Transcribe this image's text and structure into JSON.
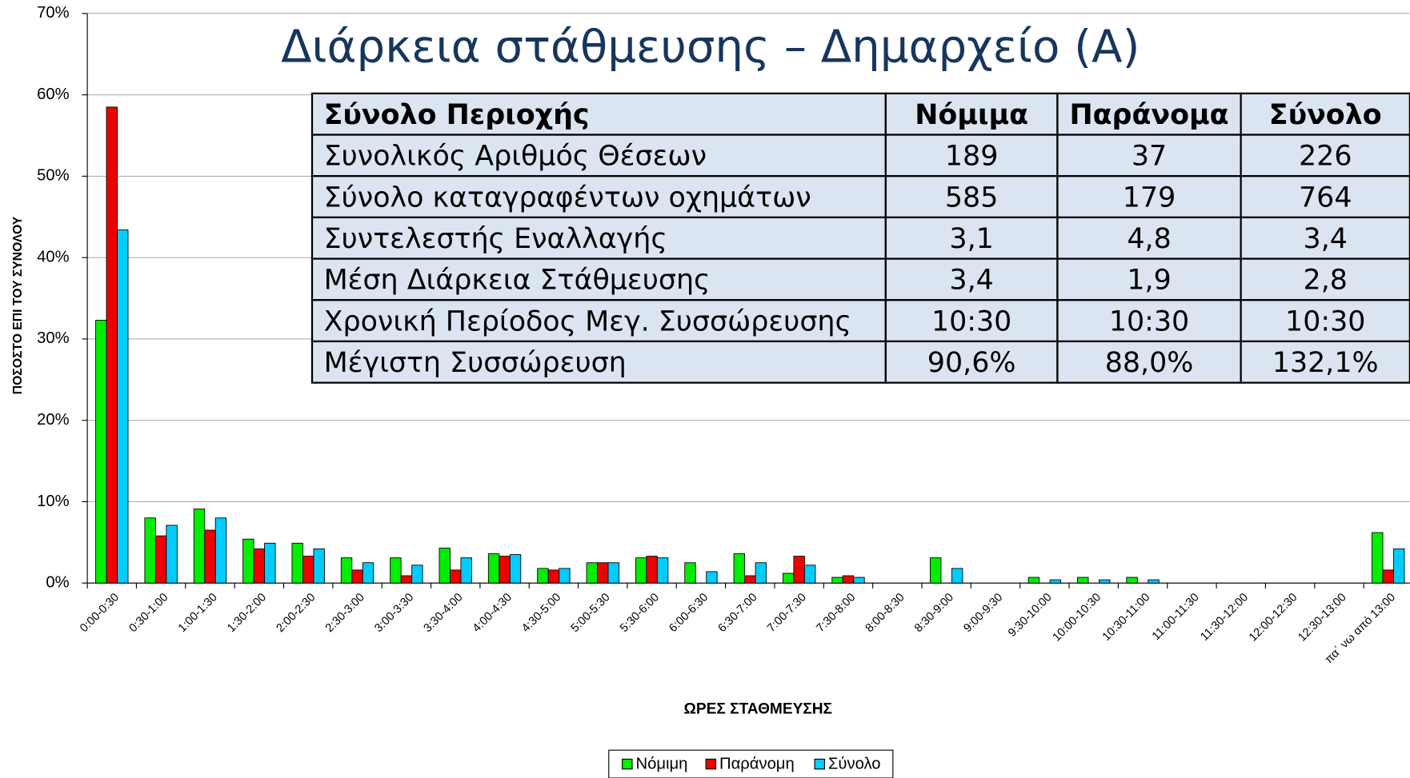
{
  "chart_data": {
    "type": "bar",
    "title": "Διάρκεια στάθμευσης – Δημαρχείο (Α)",
    "x_label": "ΩΡΕΣ ΣΤΑΘΜΕΥΣΗΣ",
    "y_label": "ΠΟΣΟΣΤΟ ΕΠΙ ΤΟΥ ΣΥΝΟΛΟΥ",
    "categories": [
      "0:00-0:30",
      "0:30-1:00",
      "1:00-1:30",
      "1:30-2:00",
      "2:00-2:30",
      "2:30-3:00",
      "3:00-3:30",
      "3:30-4:00",
      "4:00-4:30",
      "4:30-5:00",
      "5:00-5:30",
      "5:30-6:00",
      "6:00-6:30",
      "6:30-7:00",
      "7:00-7:30",
      "7:30-8:00",
      "8:00-8:30",
      "8:30-9:00",
      "9:00-9:30",
      "9:30-10:00",
      "10:00-10:30",
      "10:30-11:00",
      "11:00-11:30",
      "11:30-12:00",
      "12:00-12:30",
      "12:30-13:00",
      "πα΄ νω από 13:00"
    ],
    "series": [
      {
        "name": "Νόμιμη",
        "color": "#00ee00",
        "values": [
          32.3,
          8.0,
          9.1,
          5.4,
          4.9,
          3.1,
          3.1,
          4.3,
          3.6,
          1.8,
          2.5,
          3.1,
          2.5,
          3.6,
          1.2,
          0.7,
          0,
          3.1,
          0,
          0.7,
          0.7,
          0.7,
          0,
          0,
          0,
          0,
          6.2
        ]
      },
      {
        "name": "Παράνομη",
        "color": "#ee0000",
        "values": [
          58.5,
          5.8,
          6.5,
          4.2,
          3.3,
          1.6,
          0.9,
          1.6,
          3.3,
          1.6,
          2.5,
          3.3,
          0,
          0.9,
          3.3,
          0.9,
          0,
          0,
          0,
          0,
          0,
          0,
          0,
          0,
          0,
          0,
          1.6
        ]
      },
      {
        "name": "Σύνολο",
        "color": "#00ccff",
        "values": [
          43.4,
          7.1,
          8.0,
          4.9,
          4.2,
          2.5,
          2.2,
          3.1,
          3.5,
          1.8,
          2.5,
          3.1,
          1.4,
          2.5,
          2.2,
          0.7,
          0,
          1.8,
          0,
          0.4,
          0.4,
          0.4,
          0,
          0,
          0,
          0,
          4.2
        ]
      }
    ],
    "ylim": [
      0,
      70
    ],
    "yticks": [
      {
        "value": 0,
        "label": "0%"
      },
      {
        "value": 10,
        "label": "10%"
      },
      {
        "value": 20,
        "label": "20%"
      },
      {
        "value": 30,
        "label": "30%"
      },
      {
        "value": 40,
        "label": "40%"
      },
      {
        "value": 50,
        "label": "50%"
      },
      {
        "value": 60,
        "label": "60%"
      },
      {
        "value": 70,
        "label": "70%"
      }
    ],
    "grid": true,
    "legend": "bottom"
  },
  "table": {
    "header": [
      "Σύνολο Περιοχής",
      "Νόμιμα",
      "Παράνομα",
      "Σύνολο"
    ],
    "rows": [
      [
        "Συνολικός Αριθμός Θέσεων",
        "189",
        "37",
        "226"
      ],
      [
        "Σύνολο καταγραφέντων οχημάτων",
        "585",
        "179",
        "764"
      ],
      [
        "Συντελεστής Εναλλαγής",
        "3,1",
        "4,8",
        "3,4"
      ],
      [
        "Μέση Διάρκεια Στάθμευσης",
        "3,4",
        "1,9",
        "2,8"
      ],
      [
        "Χρονική Περίοδος Μεγ. Συσσώρευσης",
        "10:30",
        "10:30",
        "10:30"
      ],
      [
        "Μέγιστη Συσσώρευση",
        "90,6%",
        "88,0%",
        "132,1%"
      ]
    ]
  }
}
